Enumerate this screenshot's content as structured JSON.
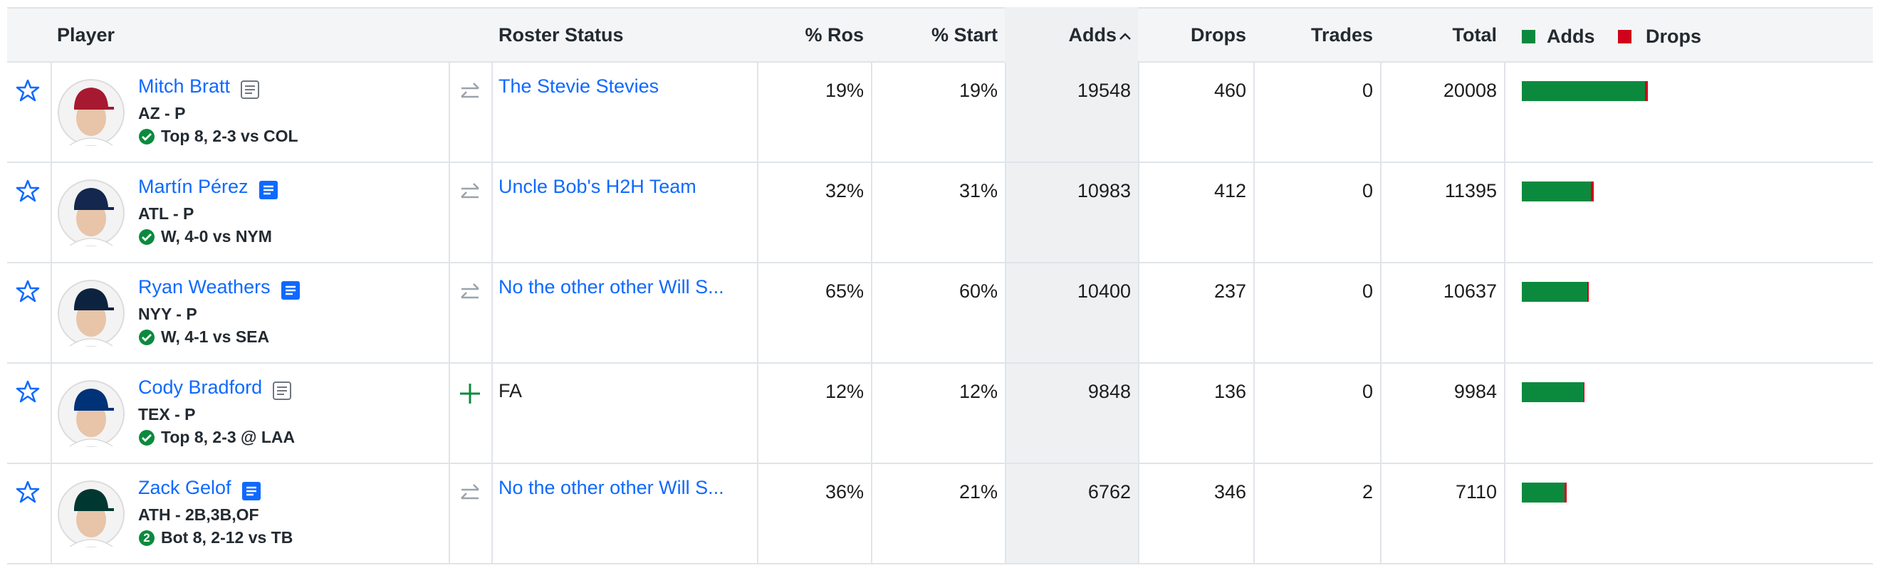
{
  "header": {
    "player": "Player",
    "roster_status": "Roster Status",
    "pct_ros": "% Ros",
    "pct_start": "% Start",
    "adds": "Adds",
    "drops": "Drops",
    "trades": "Trades",
    "total": "Total",
    "legend_adds": "Adds",
    "legend_drops": "Drops"
  },
  "colors": {
    "adds": "#0b8a3e",
    "drops": "#d0021b"
  },
  "rows": [
    {
      "name": "Mitch Bratt",
      "new_note": false,
      "team_pos": "AZ - P",
      "game": "Top 8, 2-3 vs COL",
      "cap_color": "#a71930",
      "free_agent": false,
      "roster_status": "The Stevie Stevies",
      "pct_ros": "19%",
      "pct_start": "19%",
      "adds": 19548,
      "drops": 460,
      "trades": 0,
      "total": 20008
    },
    {
      "name": "Martín Pérez",
      "new_note": true,
      "team_pos": "ATL - P",
      "game": "W, 4-0 vs NYM",
      "cap_color": "#13274f",
      "free_agent": false,
      "roster_status": "Uncle Bob's H2H Team",
      "pct_ros": "32%",
      "pct_start": "31%",
      "adds": 10983,
      "drops": 412,
      "trades": 0,
      "total": 11395
    },
    {
      "name": "Ryan Weathers",
      "new_note": true,
      "team_pos": "NYY - P",
      "game": "W, 4-1 vs SEA",
      "cap_color": "#0c2340",
      "free_agent": false,
      "roster_status": "No the other other Will S...",
      "pct_ros": "65%",
      "pct_start": "60%",
      "adds": 10400,
      "drops": 237,
      "trades": 0,
      "total": 10637
    },
    {
      "name": "Cody Bradford",
      "new_note": false,
      "team_pos": "TEX - P",
      "game": "Top 8, 2-3 @ LAA",
      "cap_color": "#003278",
      "free_agent": true,
      "roster_status": "FA",
      "pct_ros": "12%",
      "pct_start": "12%",
      "adds": 9848,
      "drops": 136,
      "trades": 0,
      "total": 9984
    },
    {
      "name": "Zack Gelof",
      "new_note": true,
      "team_pos": "ATH - 2B,3B,OF",
      "game_badge": "2",
      "game": "Bot 8, 2-12 vs TB",
      "cap_color": "#003831",
      "free_agent": false,
      "roster_status": "No the other other Will S...",
      "pct_ros": "36%",
      "pct_start": "21%",
      "adds": 6762,
      "drops": 346,
      "trades": 2,
      "total": 7110
    }
  ]
}
